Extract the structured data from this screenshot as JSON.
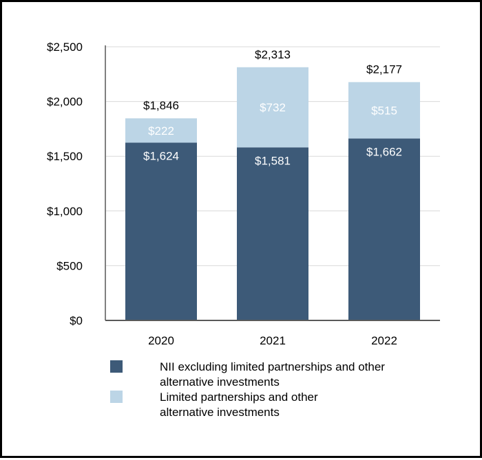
{
  "chart_data": {
    "type": "bar",
    "stacked": true,
    "categories": [
      "2020",
      "2021",
      "2022"
    ],
    "series": [
      {
        "name": "NII excluding limited partnerships and other alternative investments",
        "legend_lines": [
          "NII excluding limited partnerships and other",
          "alternative investments"
        ],
        "color": "#3d5a78",
        "values": [
          1624,
          1581,
          1662
        ],
        "value_labels": [
          "$1,624",
          "$1,581",
          "$1,662"
        ]
      },
      {
        "name": "Limited partnerships and other alternative investments",
        "legend_lines": [
          "Limited partnerships and other",
          "alternative investments"
        ],
        "color": "#bcd5e6",
        "values": [
          222,
          732,
          515
        ],
        "value_labels": [
          "$222",
          "$732",
          "$515"
        ]
      }
    ],
    "totals": [
      1846,
      2313,
      2177
    ],
    "total_labels": [
      "$1,846",
      "$2,313",
      "$2,177"
    ],
    "ylim": [
      0,
      2500
    ],
    "yticks": [
      0,
      500,
      1000,
      1500,
      2000,
      2500
    ],
    "ytick_labels": [
      "$0",
      "$500",
      "$1,000",
      "$1,500",
      "$2,000",
      "$2,500"
    ],
    "grid": true,
    "legend_position": "bottom",
    "title": "",
    "xlabel": "",
    "ylabel": ""
  }
}
